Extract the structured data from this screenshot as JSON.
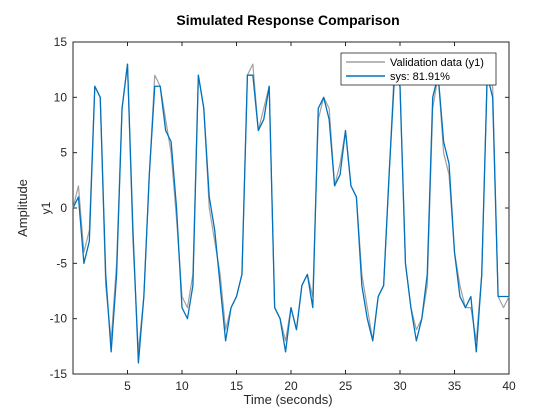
{
  "chart_data": {
    "type": "line",
    "title": "Simulated Response Comparison",
    "xlabel": "Time (seconds)",
    "ylabel": "Amplitude",
    "channel_label": "y1",
    "xlim": [
      0,
      40
    ],
    "ylim": [
      -15,
      15
    ],
    "xticks": [
      5,
      10,
      15,
      20,
      25,
      30,
      35,
      40
    ],
    "yticks": [
      -15,
      -10,
      -5,
      0,
      5,
      10,
      15
    ],
    "grid": false,
    "legend_position": "top-right",
    "series": [
      {
        "name": "Validation data (y1)",
        "color": "#a0a0a0",
        "x": [
          0,
          0.5,
          1,
          1.5,
          2,
          2.5,
          3,
          3.5,
          4,
          4.5,
          5,
          5.5,
          6,
          6.5,
          7,
          7.5,
          8,
          8.5,
          9,
          9.5,
          10,
          10.5,
          11,
          11.5,
          12,
          12.5,
          13,
          13.5,
          14,
          14.5,
          15,
          15.5,
          16,
          16.5,
          17,
          17.5,
          18,
          18.5,
          19,
          19.5,
          20,
          20.5,
          21,
          21.5,
          22,
          22.5,
          23,
          23.5,
          24,
          24.5,
          25,
          25.5,
          26,
          26.5,
          27,
          27.5,
          28,
          28.5,
          29,
          29.5,
          30,
          30.5,
          31,
          31.5,
          32,
          32.5,
          33,
          33.5,
          34,
          34.5,
          35,
          35.5,
          36,
          36.5,
          37,
          37.5,
          38,
          38.5,
          39,
          39.5,
          40
        ],
        "values": [
          0,
          2,
          -4,
          -2,
          11,
          10,
          -7,
          -12,
          -5,
          9,
          13,
          -3,
          -13,
          -8,
          3,
          12,
          11,
          8,
          5,
          -1,
          -8,
          -9,
          -6,
          12,
          9,
          0,
          -3,
          -6,
          -11,
          -9,
          -8,
          -6,
          12,
          13,
          7,
          9,
          11,
          -9,
          -10,
          -12,
          -9,
          -11,
          -7,
          -6,
          -8,
          8,
          10,
          9,
          2,
          4,
          7,
          2,
          1,
          -6,
          -9,
          -12,
          -8,
          -7,
          3,
          13,
          11,
          -5,
          -9,
          -11,
          -10,
          -7,
          9,
          12,
          5,
          3,
          -4,
          -7,
          -9,
          -9,
          -12,
          -6,
          12,
          11,
          -8,
          -9,
          -8
        ]
      },
      {
        "name": "sys: 81.91%",
        "color": "#0072bd",
        "x": [
          0,
          0.5,
          1,
          1.5,
          2,
          2.5,
          3,
          3.5,
          4,
          4.5,
          5,
          5.5,
          6,
          6.5,
          7,
          7.5,
          8,
          8.5,
          9,
          9.5,
          10,
          10.5,
          11,
          11.5,
          12,
          12.5,
          13,
          13.5,
          14,
          14.5,
          15,
          15.5,
          16,
          16.5,
          17,
          17.5,
          18,
          18.5,
          19,
          19.5,
          20,
          20.5,
          21,
          21.5,
          22,
          22.5,
          23,
          23.5,
          24,
          24.5,
          25,
          25.5,
          26,
          26.5,
          27,
          27.5,
          28,
          28.5,
          29,
          29.5,
          30,
          30.5,
          31,
          31.5,
          32,
          32.5,
          33,
          33.5,
          34,
          34.5,
          35,
          35.5,
          36,
          36.5,
          37,
          37.5,
          38,
          38.5,
          39,
          39.5,
          40
        ],
        "values": [
          0,
          1,
          -5,
          -3,
          11,
          10,
          -6,
          -13,
          -6,
          9,
          13,
          -2,
          -14,
          -8,
          3,
          11,
          11,
          7,
          6,
          0,
          -9,
          -10,
          -7,
          12,
          9,
          1,
          -2,
          -7,
          -12,
          -9,
          -8,
          -6,
          12,
          12,
          7,
          8,
          11,
          -9,
          -10,
          -13,
          -9,
          -11,
          -7,
          -6,
          -9,
          9,
          10,
          8,
          2,
          3,
          7,
          2,
          1,
          -7,
          -10,
          -12,
          -8,
          -7,
          3,
          12,
          11,
          -5,
          -9,
          -12,
          -10,
          -6,
          10,
          12,
          6,
          4,
          -4,
          -8,
          -9,
          -8,
          -13,
          -6,
          12,
          10,
          -8,
          -8,
          -8
        ]
      }
    ]
  }
}
